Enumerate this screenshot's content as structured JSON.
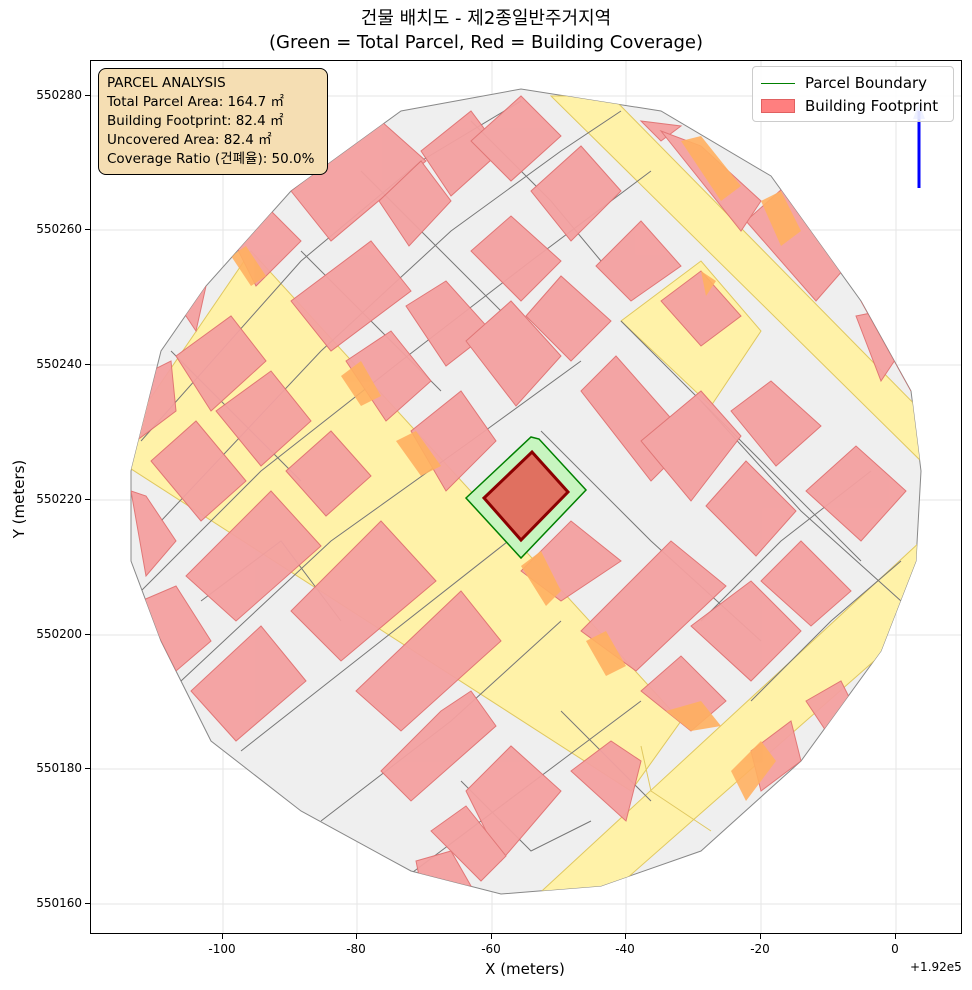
{
  "title": {
    "line1": "건물 배치도 - 제2종일반주거지역",
    "line2": "(Green = Total Parcel, Red = Building Coverage)"
  },
  "axes": {
    "xlabel": "X (meters)",
    "ylabel": "Y (meters)",
    "x_offset": "+1.92e5",
    "xticks": [
      "-100",
      "-80",
      "-60",
      "-40",
      "-20",
      "0"
    ],
    "yticks": [
      "550280",
      "550260",
      "550240",
      "550220",
      "550200",
      "550180",
      "550160"
    ]
  },
  "legend": {
    "placement": "top-right",
    "items": [
      {
        "label": "Parcel Boundary",
        "color": "#008000"
      },
      {
        "label": "Building Footprint",
        "color": "#ff7f7f"
      }
    ]
  },
  "info": {
    "heading": "PARCEL ANALYSIS",
    "total": "Total Parcel Area: 164.7 ㎡",
    "footprint": "Building Footprint: 82.4 ㎡",
    "uncovered": "Uncovered Area: 82.4 ㎡",
    "ratio": "Coverage Ratio (건폐율): 50.0%"
  },
  "colors": {
    "parcel_fill": "#c8f5c0",
    "parcel_edge": "#008000",
    "building_fill": "#e07060",
    "building_edge": "#8b0000",
    "context_building": "#f4a0a0",
    "road": "#fff2a8",
    "north_arrow": "#0000ff"
  }
}
